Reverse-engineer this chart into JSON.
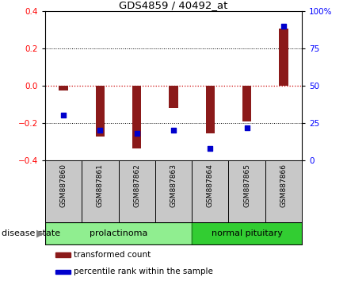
{
  "title": "GDS4859 / 40492_at",
  "samples": [
    "GSM887860",
    "GSM887861",
    "GSM887862",
    "GSM887863",
    "GSM887864",
    "GSM887865",
    "GSM887866"
  ],
  "transformed_count": [
    -0.025,
    -0.275,
    -0.335,
    -0.12,
    -0.255,
    -0.19,
    0.305
  ],
  "percentile_rank": [
    30,
    20,
    18,
    20,
    8,
    22,
    90
  ],
  "bar_color": "#8B1A1A",
  "dot_color": "#0000CD",
  "ylim_left": [
    -0.4,
    0.4
  ],
  "ylim_right": [
    0,
    100
  ],
  "yticks_left": [
    -0.4,
    -0.2,
    0.0,
    0.2,
    0.4
  ],
  "yticks_right": [
    0,
    25,
    50,
    75,
    100
  ],
  "ytick_labels_right": [
    "0",
    "25",
    "50",
    "75",
    "100%"
  ],
  "groups": [
    {
      "label": "prolactinoma",
      "indices": [
        0,
        1,
        2,
        3
      ],
      "color": "#90EE90",
      "edge_color": "#228B22"
    },
    {
      "label": "normal pituitary",
      "indices": [
        4,
        5,
        6
      ],
      "color": "#32CD32",
      "edge_color": "#228B22"
    }
  ],
  "disease_state_label": "disease state",
  "legend_items": [
    {
      "label": "transformed count",
      "color": "#8B1A1A"
    },
    {
      "label": "percentile rank within the sample",
      "color": "#0000CD"
    }
  ],
  "zero_line_color": "#CC0000",
  "background_label": "#C8C8C8",
  "bar_width": 0.25
}
